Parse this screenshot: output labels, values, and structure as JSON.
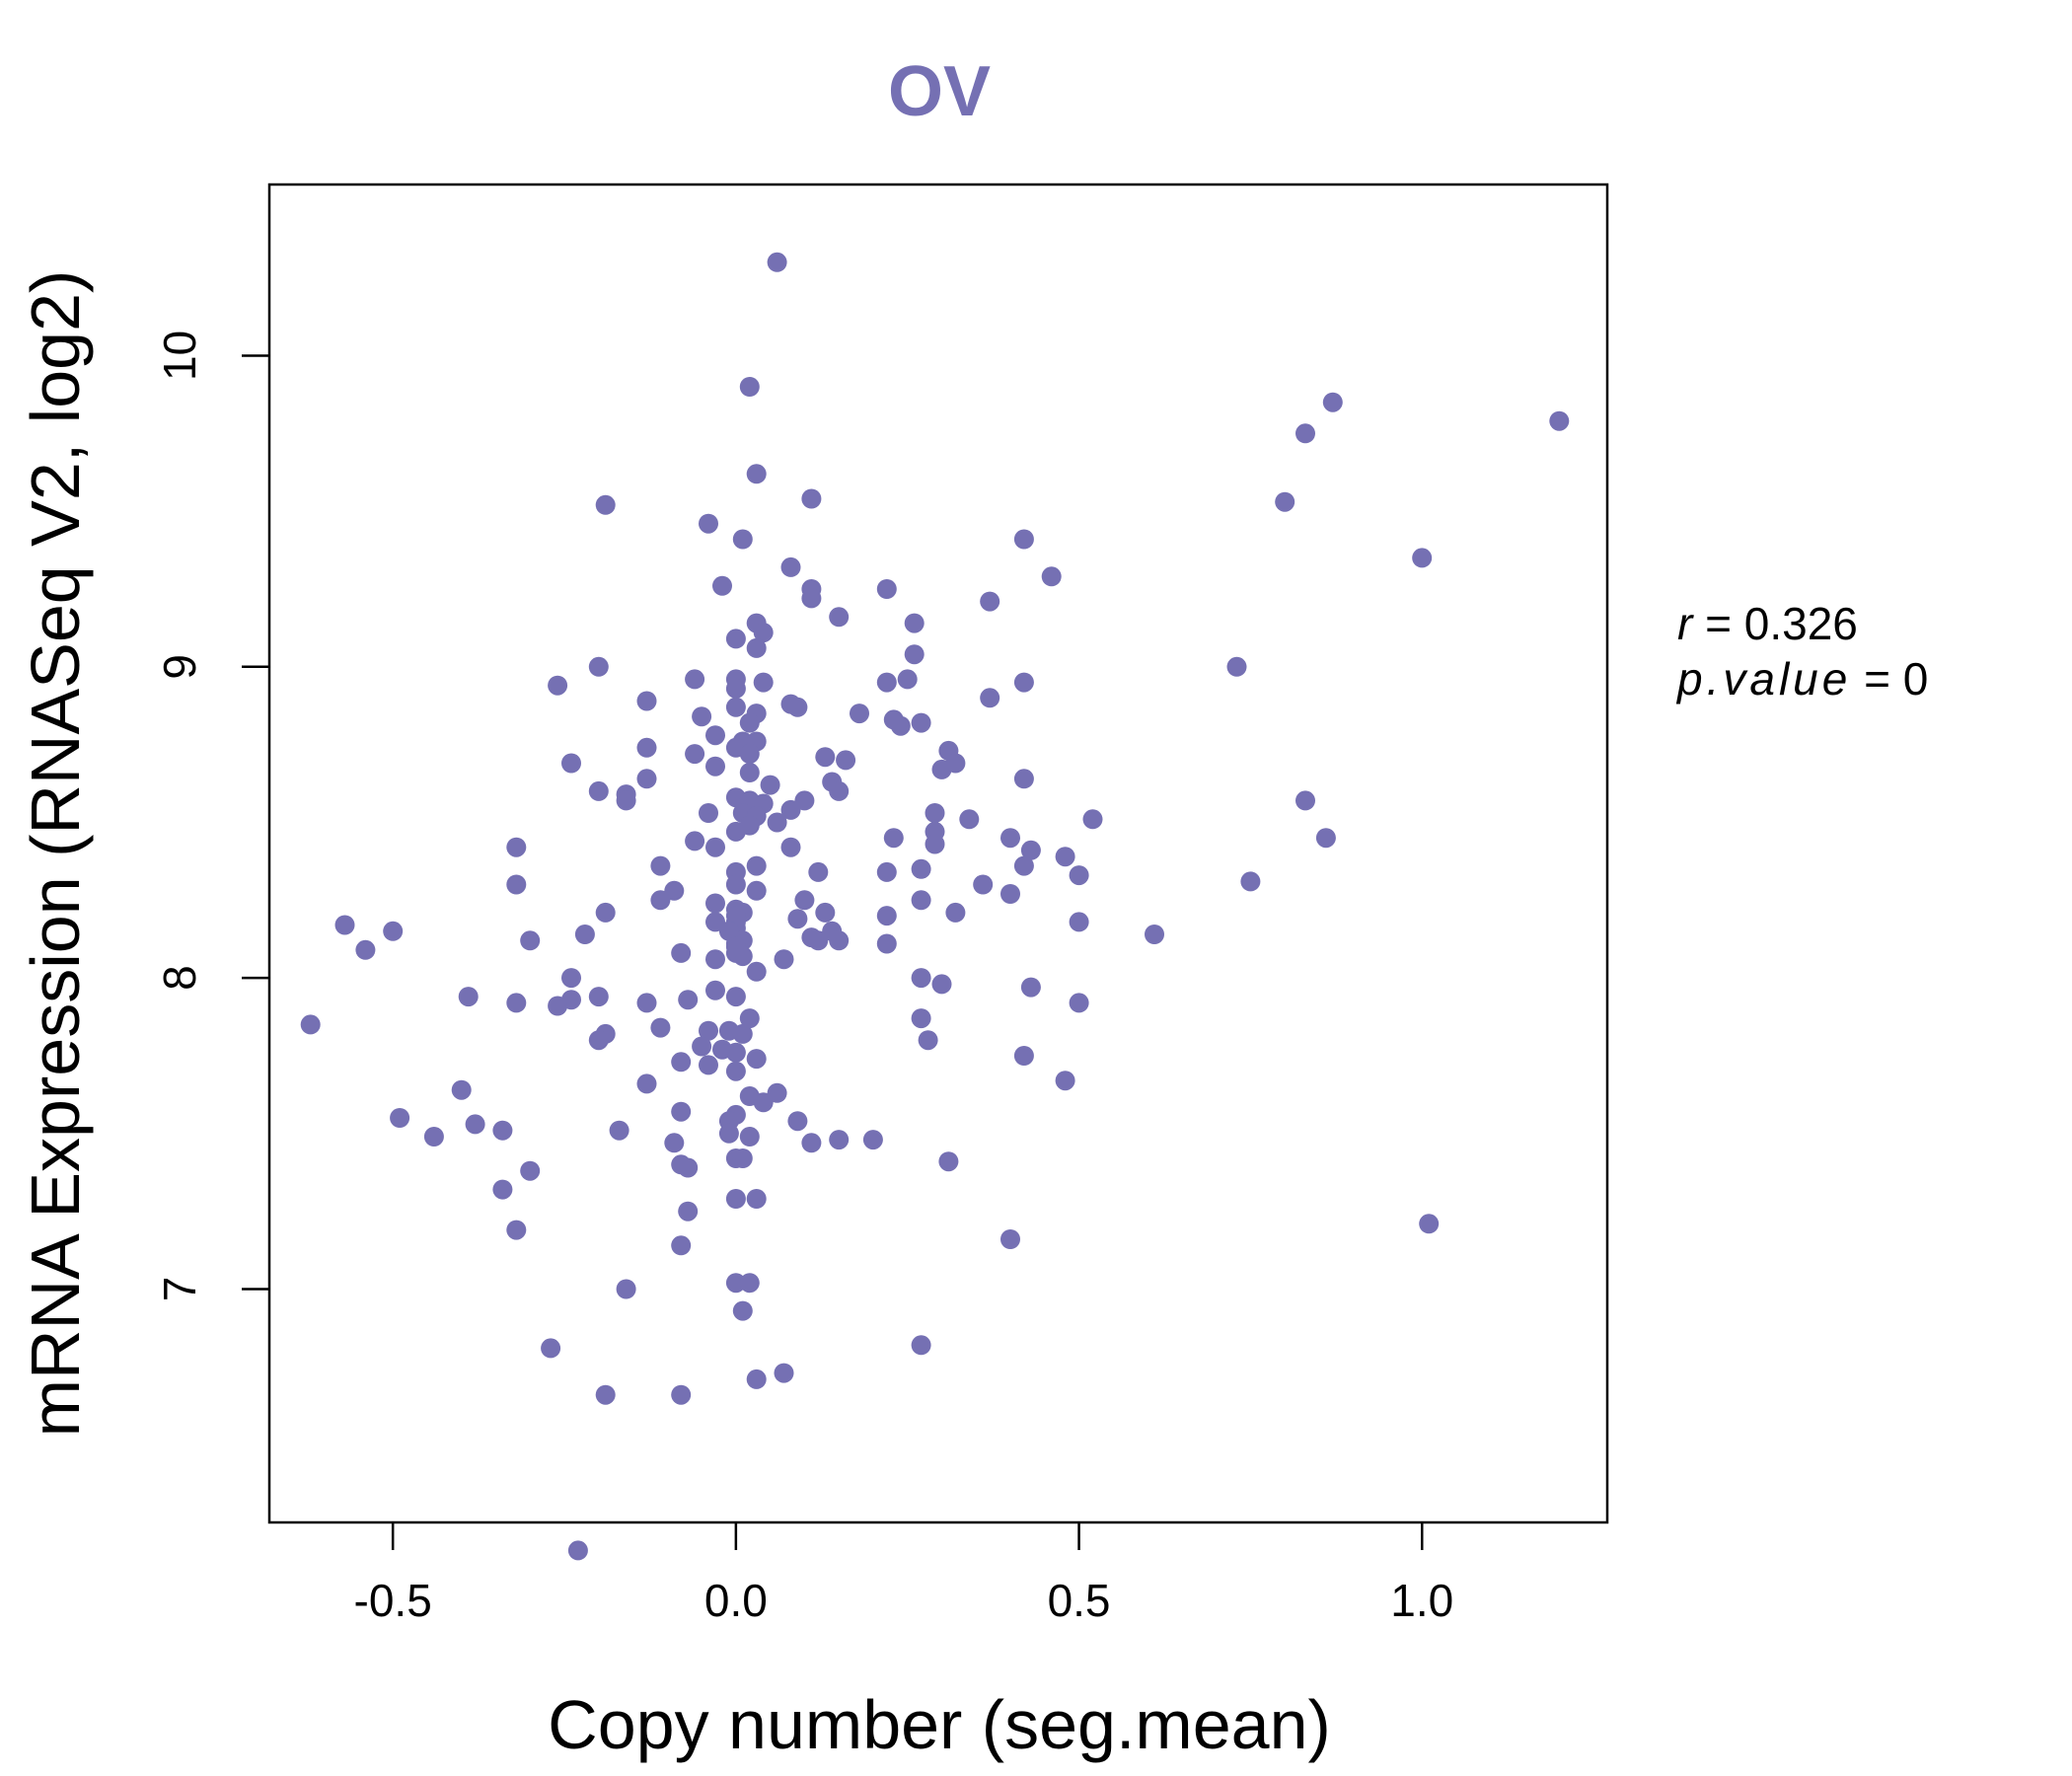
{
  "chart_data": {
    "type": "scatter",
    "title": "OV",
    "xlabel": "Copy number (seg.mean)",
    "ylabel": "mRNA Expression (RNASeq V2, log2)",
    "xlim": [
      -0.68,
      1.27
    ],
    "ylim": [
      6.25,
      10.55
    ],
    "x_ticks": [
      -0.5,
      0.0,
      0.5,
      1.0
    ],
    "x_tick_labels": [
      "-0.5",
      "0.0",
      "0.5",
      "1.0"
    ],
    "y_ticks": [
      7,
      8,
      9,
      10
    ],
    "y_tick_labels": [
      "7",
      "8",
      "9",
      "10"
    ],
    "point_color": "#7570b3",
    "title_color": "#7570b3",
    "legend_position": "right",
    "stats": {
      "r_symbol": "r",
      "eq": " = ",
      "r_value": "0.326",
      "p_symbol": "p.value",
      "p_value": "0"
    },
    "points": [
      [
        0.06,
        10.3
      ],
      [
        0.02,
        9.9
      ],
      [
        0.03,
        9.62
      ],
      [
        0.11,
        9.54
      ],
      [
        -0.19,
        9.52
      ],
      [
        -0.04,
        9.46
      ],
      [
        0.01,
        9.41
      ],
      [
        0.08,
        9.32
      ],
      [
        -0.02,
        9.26
      ],
      [
        0.11,
        9.25
      ],
      [
        0.11,
        9.22
      ],
      [
        0.22,
        9.25
      ],
      [
        0.15,
        9.16
      ],
      [
        0.03,
        9.14
      ],
      [
        0.04,
        9.11
      ],
      [
        0.0,
        9.09
      ],
      [
        0.03,
        9.06
      ],
      [
        0.26,
        9.14
      ],
      [
        0.26,
        9.04
      ],
      [
        -0.2,
        9.0
      ],
      [
        0.0,
        8.96
      ],
      [
        0.04,
        8.95
      ],
      [
        0.0,
        8.93
      ],
      [
        -0.06,
        8.96
      ],
      [
        -0.26,
        8.94
      ],
      [
        0.22,
        8.95
      ],
      [
        0.25,
        8.96
      ],
      [
        -0.13,
        8.89
      ],
      [
        0.08,
        8.88
      ],
      [
        0.09,
        8.87
      ],
      [
        0.0,
        8.87
      ],
      [
        0.03,
        8.85
      ],
      [
        -0.05,
        8.84
      ],
      [
        0.02,
        8.82
      ],
      [
        0.18,
        8.85
      ],
      [
        0.23,
        8.83
      ],
      [
        0.24,
        8.81
      ],
      [
        0.27,
        8.82
      ],
      [
        -0.03,
        8.78
      ],
      [
        0.01,
        8.76
      ],
      [
        0.0,
        8.74
      ],
      [
        0.03,
        8.76
      ],
      [
        -0.13,
        8.74
      ],
      [
        -0.06,
        8.72
      ],
      [
        0.02,
        8.72
      ],
      [
        0.13,
        8.71
      ],
      [
        0.16,
        8.7
      ],
      [
        0.31,
        8.73
      ],
      [
        0.32,
        8.69
      ],
      [
        -0.24,
        8.69
      ],
      [
        -0.03,
        8.68
      ],
      [
        0.02,
        8.66
      ],
      [
        0.3,
        8.67
      ],
      [
        0.42,
        8.64
      ],
      [
        -0.13,
        8.64
      ],
      [
        0.14,
        8.63
      ],
      [
        0.15,
        8.6
      ],
      [
        0.05,
        8.62
      ],
      [
        -0.2,
        8.6
      ],
      [
        -0.16,
        8.59
      ],
      [
        -0.16,
        8.57
      ],
      [
        0.0,
        8.58
      ],
      [
        0.02,
        8.57
      ],
      [
        0.1,
        8.57
      ],
      [
        0.04,
        8.56
      ],
      [
        0.08,
        8.54
      ],
      [
        -0.04,
        8.53
      ],
      [
        0.01,
        8.53
      ],
      [
        0.03,
        8.52
      ],
      [
        0.06,
        8.5
      ],
      [
        0.02,
        8.49
      ],
      [
        0.29,
        8.53
      ],
      [
        0.34,
        8.51
      ],
      [
        0.52,
        8.51
      ],
      [
        0.0,
        8.47
      ],
      [
        0.29,
        8.47
      ],
      [
        0.4,
        8.45
      ],
      [
        0.23,
        8.45
      ],
      [
        -0.06,
        8.44
      ],
      [
        -0.03,
        8.42
      ],
      [
        0.08,
        8.42
      ],
      [
        0.29,
        8.43
      ],
      [
        0.43,
        8.41
      ],
      [
        -0.32,
        8.42
      ],
      [
        0.48,
        8.39
      ],
      [
        0.03,
        8.36
      ],
      [
        0.0,
        8.34
      ],
      [
        0.42,
        8.36
      ],
      [
        0.12,
        8.34
      ],
      [
        0.22,
        8.34
      ],
      [
        0.27,
        8.35
      ],
      [
        0.5,
        8.33
      ],
      [
        -0.11,
        8.36
      ],
      [
        0.36,
        8.3
      ],
      [
        -0.32,
        8.3
      ],
      [
        -0.09,
        8.28
      ],
      [
        0.0,
        8.3
      ],
      [
        0.03,
        8.28
      ],
      [
        0.4,
        8.27
      ],
      [
        -0.11,
        8.25
      ],
      [
        0.1,
        8.25
      ],
      [
        0.27,
        8.25
      ],
      [
        -0.03,
        8.24
      ],
      [
        0.0,
        8.22
      ],
      [
        0.01,
        8.21
      ],
      [
        0.13,
        8.21
      ],
      [
        0.32,
        8.21
      ],
      [
        -0.19,
        8.21
      ],
      [
        0.22,
        8.2
      ],
      [
        0.09,
        8.19
      ],
      [
        0.5,
        8.18
      ],
      [
        -0.03,
        8.18
      ],
      [
        0.0,
        8.16
      ],
      [
        -0.57,
        8.17
      ],
      [
        -0.5,
        8.15
      ],
      [
        -0.22,
        8.14
      ],
      [
        0.61,
        8.14
      ],
      [
        0.14,
        8.15
      ],
      [
        0.12,
        8.12
      ],
      [
        0.15,
        8.12
      ],
      [
        0.11,
        8.13
      ],
      [
        0.22,
        8.11
      ],
      [
        -0.3,
        8.12
      ],
      [
        0.01,
        8.12
      ],
      [
        -0.54,
        8.09
      ],
      [
        -0.08,
        8.08
      ],
      [
        0.0,
        8.08
      ],
      [
        0.07,
        8.06
      ],
      [
        -0.03,
        8.06
      ],
      [
        0.03,
        8.02
      ],
      [
        -0.24,
        8.0
      ],
      [
        0.27,
        8.0
      ],
      [
        0.3,
        7.98
      ],
      [
        0.43,
        7.97
      ],
      [
        -0.03,
        7.96
      ],
      [
        -0.39,
        7.94
      ],
      [
        -0.2,
        7.94
      ],
      [
        -0.24,
        7.93
      ],
      [
        0.0,
        7.94
      ],
      [
        -0.07,
        7.93
      ],
      [
        -0.13,
        7.92
      ],
      [
        -0.32,
        7.92
      ],
      [
        -0.26,
        7.91
      ],
      [
        0.5,
        7.92
      ],
      [
        -0.62,
        7.85
      ],
      [
        0.02,
        7.87
      ],
      [
        0.27,
        7.87
      ],
      [
        -0.11,
        7.84
      ],
      [
        -0.04,
        7.83
      ],
      [
        -0.01,
        7.83
      ],
      [
        0.01,
        7.82
      ],
      [
        -0.19,
        7.82
      ],
      [
        -0.2,
        7.8
      ],
      [
        0.28,
        7.8
      ],
      [
        -0.05,
        7.78
      ],
      [
        -0.02,
        7.77
      ],
      [
        0.0,
        7.76
      ],
      [
        0.03,
        7.74
      ],
      [
        0.42,
        7.75
      ],
      [
        -0.08,
        7.73
      ],
      [
        -0.04,
        7.72
      ],
      [
        0.0,
        7.7
      ],
      [
        0.48,
        7.67
      ],
      [
        -0.13,
        7.66
      ],
      [
        -0.4,
        7.64
      ],
      [
        0.06,
        7.63
      ],
      [
        0.02,
        7.62
      ],
      [
        0.04,
        7.6
      ],
      [
        -0.08,
        7.57
      ],
      [
        0.0,
        7.56
      ],
      [
        -0.49,
        7.55
      ],
      [
        -0.01,
        7.54
      ],
      [
        0.09,
        7.54
      ],
      [
        -0.38,
        7.53
      ],
      [
        -0.34,
        7.51
      ],
      [
        -0.17,
        7.51
      ],
      [
        -0.01,
        7.5
      ],
      [
        0.02,
        7.49
      ],
      [
        -0.44,
        7.49
      ],
      [
        0.11,
        7.47
      ],
      [
        0.15,
        7.48
      ],
      [
        0.2,
        7.48
      ],
      [
        -0.09,
        7.47
      ],
      [
        0.0,
        7.42
      ],
      [
        0.01,
        7.42
      ],
      [
        0.31,
        7.41
      ],
      [
        -0.08,
        7.4
      ],
      [
        -0.07,
        7.39
      ],
      [
        -0.3,
        7.38
      ],
      [
        -0.34,
        7.32
      ],
      [
        0.0,
        7.29
      ],
      [
        0.03,
        7.29
      ],
      [
        -0.07,
        7.25
      ],
      [
        -0.32,
        7.19
      ],
      [
        0.4,
        7.16
      ],
      [
        1.01,
        7.21
      ],
      [
        -0.08,
        7.14
      ],
      [
        0.0,
        7.02
      ],
      [
        0.02,
        7.02
      ],
      [
        -0.16,
        7.0
      ],
      [
        0.01,
        6.93
      ],
      [
        -0.27,
        6.81
      ],
      [
        0.27,
        6.82
      ],
      [
        0.07,
        6.73
      ],
      [
        0.03,
        6.71
      ],
      [
        -0.19,
        6.66
      ],
      [
        -0.08,
        6.66
      ],
      [
        -0.23,
        6.16
      ],
      [
        0.87,
        9.85
      ],
      [
        1.2,
        9.79
      ],
      [
        0.83,
        9.75
      ],
      [
        0.8,
        9.53
      ],
      [
        1.0,
        9.35
      ],
      [
        0.73,
        9.0
      ],
      [
        0.83,
        8.57
      ],
      [
        0.86,
        8.45
      ],
      [
        0.75,
        8.31
      ],
      [
        0.42,
        9.41
      ],
      [
        0.46,
        9.29
      ],
      [
        0.37,
        9.21
      ],
      [
        0.42,
        8.95
      ],
      [
        0.37,
        8.9
      ],
      [
        0.01,
        8.07
      ],
      [
        0.0,
        8.11
      ],
      [
        0.0,
        8.18
      ],
      [
        0.0,
        8.2
      ],
      [
        -0.01,
        8.15
      ],
      [
        0.0,
        8.1
      ]
    ]
  }
}
